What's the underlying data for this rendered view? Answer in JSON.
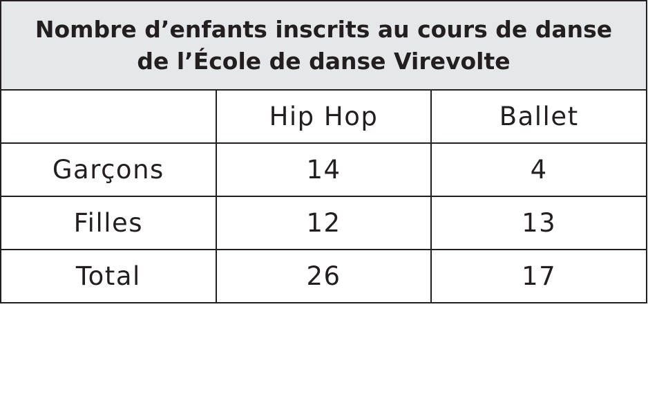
{
  "chart_data": {
    "type": "table",
    "title": "Nombre d’enfants inscrits au cours de danse de l’École de danse Virevolte",
    "title_lines": [
      "Nombre d’enfants inscrits au cours de danse",
      "de l’École de danse Virevolte"
    ],
    "columns": [
      "",
      "Hip Hop",
      "Ballet"
    ],
    "rows": [
      {
        "label": "Garçons",
        "values": [
          "14",
          "4"
        ]
      },
      {
        "label": "Filles",
        "values": [
          "12",
          "13"
        ]
      },
      {
        "label": "Total",
        "values": [
          "26",
          "17"
        ]
      }
    ],
    "colors": {
      "header_background": "#e6e7e8",
      "border": "#231f20"
    }
  }
}
